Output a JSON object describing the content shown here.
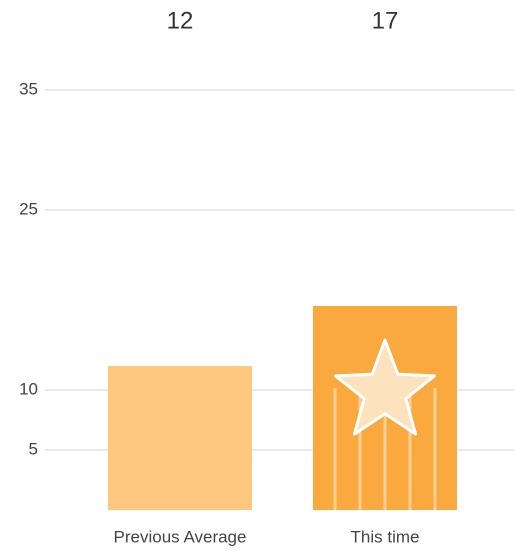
{
  "chart_data": {
    "type": "bar",
    "categories": [
      "Previous Average",
      "This time"
    ],
    "values": [
      12,
      17
    ],
    "colors": [
      "#fdc77e",
      "#f9a93d"
    ],
    "ylim": [
      0,
      40
    ],
    "yticks": [
      5,
      10,
      25,
      35
    ],
    "grid": true
  }
}
